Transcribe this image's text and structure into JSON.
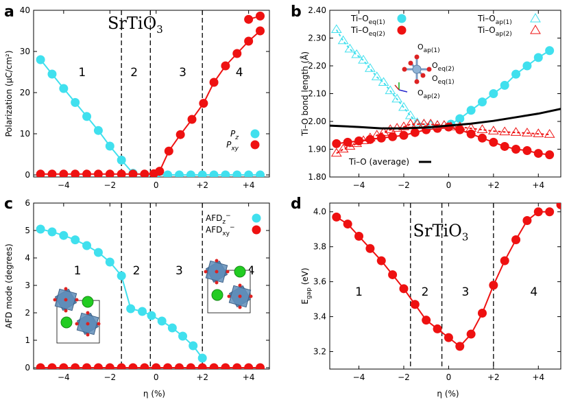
{
  "colors": {
    "cyan": "#40E0EE",
    "red": "#EE1111",
    "black": "#000000",
    "octa": "#5F8DB8"
  },
  "chart_data": [
    {
      "id": "a",
      "panel_label": "a",
      "type": "line",
      "xlabel": "",
      "ylabel": "Polarization (μC/cm²)",
      "xlim": [
        -5.3,
        4.9
      ],
      "ylim": [
        -0.5,
        40
      ],
      "xticks": [
        -4,
        -2,
        0,
        2,
        4
      ],
      "xtick_labels": [
        "−4",
        "−2",
        "0",
        "+2",
        "+4"
      ],
      "yticks": [
        0,
        10,
        20,
        30,
        40
      ],
      "ytick_labels": [
        "0",
        "10",
        "20",
        "30",
        "40"
      ],
      "vlines": [
        -1.5,
        -0.25,
        2.0
      ],
      "regions": [
        {
          "x": -3.2,
          "y": 24,
          "text": "1"
        },
        {
          "x": -0.95,
          "y": 24,
          "text": "2"
        },
        {
          "x": 1.15,
          "y": 24,
          "text": "3"
        },
        {
          "x": 3.6,
          "y": 24,
          "text": "4"
        }
      ],
      "title_text": {
        "x": -0.9,
        "y": 35.5,
        "text": "SrTiO",
        "sub": "3"
      },
      "legend": [
        {
          "name": "P",
          "sub": "z",
          "color": "cyan"
        },
        {
          "name": "P",
          "sub": "xy",
          "color": "red"
        }
      ],
      "series": [
        {
          "name": "Pz",
          "color": "cyan",
          "x": [
            -5.0,
            -4.5,
            -4.0,
            -3.5,
            -3.0,
            -2.5,
            -2.0,
            -1.5,
            -1.0,
            -0.5,
            0,
            0.5,
            1.0,
            1.5,
            2.0,
            2.5,
            3.0,
            3.5,
            4.0,
            4.5
          ],
          "y": [
            28.0,
            24.5,
            21.0,
            17.6,
            14.2,
            10.8,
            7.0,
            3.6,
            0.4,
            0,
            0,
            0,
            0,
            0,
            0,
            0,
            0,
            0,
            0,
            0
          ]
        },
        {
          "name": "Pxy",
          "color": "red",
          "x": [
            -5.0,
            -4.5,
            -4.0,
            -3.5,
            -3.0,
            -2.5,
            -2.0,
            -1.5,
            -1.0,
            -0.5,
            -0.1,
            0.15,
            0.55,
            1.05,
            1.55,
            2.05,
            2.5,
            3.0,
            3.5,
            4.0,
            4.5
          ],
          "y": [
            0.2,
            0.2,
            0.2,
            0.2,
            0.2,
            0.2,
            0.2,
            0.2,
            0.2,
            0.2,
            0.3,
            0.9,
            5.8,
            9.8,
            13.5,
            17.4,
            22.5,
            26.5,
            29.5,
            32.5,
            35.0
          ]
        },
        {
          "name": "Pxy-extra",
          "color": "red",
          "x": [
            4.0,
            4.5
          ],
          "y": [
            37.8,
            38.6
          ]
        }
      ]
    },
    {
      "id": "b",
      "panel_label": "b",
      "type": "line",
      "xlabel": "",
      "ylabel": "Ti–O bond length (Å)",
      "xlim": [
        -5.3,
        5.0
      ],
      "ylim": [
        1.8,
        2.4
      ],
      "xticks": [
        -4,
        -2,
        0,
        2,
        4
      ],
      "xtick_labels": [
        "−4",
        "−2",
        "0",
        "+2",
        "+4"
      ],
      "yticks": [
        1.8,
        1.9,
        2.0,
        2.1,
        2.2,
        2.3,
        2.4
      ],
      "ytick_labels": [
        "1.80",
        "1.90",
        "2.00",
        "2.10",
        "2.20",
        "2.30",
        "2.40"
      ],
      "legend": [
        {
          "name": "Ti–O",
          "sub": "eq(1)",
          "color": "cyan",
          "marker": "circle"
        },
        {
          "name": "Ti–O",
          "sub": "eq(2)",
          "color": "red",
          "marker": "circle"
        },
        {
          "name": "Ti–O",
          "sub": "ap(1)",
          "color": "cyan",
          "marker": "triangle"
        },
        {
          "name": "Ti–O",
          "sub": "ap(2)",
          "color": "red",
          "marker": "triangle"
        },
        {
          "name": "Ti–O (average)",
          "sub": "",
          "color": "black",
          "marker": "line"
        }
      ],
      "inset_labels": [
        {
          "text": "O",
          "sub": "ap(1)"
        },
        {
          "text": "O",
          "sub": "eq(2)"
        },
        {
          "text": "O",
          "sub": "eq(1)"
        },
        {
          "text": "O",
          "sub": "ap(2)"
        }
      ],
      "series": [
        {
          "name": "Ti–O eq(1)",
          "color": "cyan",
          "marker": "circle",
          "x": [
            0.1,
            0.5,
            1.0,
            1.5,
            2.0,
            2.5,
            3.0,
            3.5,
            4.0,
            4.5
          ],
          "y": [
            1.99,
            2.01,
            2.04,
            2.07,
            2.1,
            2.13,
            2.17,
            2.2,
            2.23,
            2.255
          ]
        },
        {
          "name": "Ti–O eq(2)",
          "color": "red",
          "marker": "circle",
          "x": [
            -5.0,
            -4.5,
            -4.0,
            -3.5,
            -3.0,
            -2.5,
            -2.0,
            -1.5,
            -1.0,
            -0.5,
            0,
            0.5,
            1.0,
            1.5,
            2.0,
            2.5,
            3.0,
            3.5,
            4.0,
            4.5
          ],
          "y": [
            1.92,
            1.925,
            1.93,
            1.935,
            1.94,
            1.945,
            1.95,
            1.96,
            1.97,
            1.975,
            1.98,
            1.97,
            1.955,
            1.94,
            1.925,
            1.91,
            1.9,
            1.895,
            1.885,
            1.88
          ]
        },
        {
          "name": "Ti–O ap(1)",
          "color": "cyan",
          "marker": "triangle",
          "x": [
            -5.0,
            -4.7,
            -4.4,
            -4.1,
            -3.8,
            -3.5,
            -3.2,
            -2.9,
            -2.6,
            -2.3,
            -2.0,
            -1.7,
            -1.4,
            -1.1,
            -0.8,
            -0.5,
            -0.2
          ],
          "y": [
            2.33,
            2.29,
            2.26,
            2.24,
            2.22,
            2.19,
            2.16,
            2.14,
            2.11,
            2.08,
            2.05,
            2.02,
            1.995,
            1.99,
            1.985,
            1.985,
            1.985
          ]
        },
        {
          "name": "Ti–O ap(2)",
          "color": "red",
          "marker": "triangle",
          "x": [
            -5.0,
            -4.7,
            -4.4,
            -4.1,
            -3.8,
            -3.5,
            -3.2,
            -2.9,
            -2.6,
            -2.3,
            -2.0,
            -1.7,
            -1.4,
            -1.1,
            -0.8,
            -0.5,
            -0.2,
            0.1,
            0.5,
            1.0,
            1.5,
            2.0,
            2.5,
            3.0,
            3.5,
            4.0,
            4.5
          ],
          "y": [
            1.885,
            1.9,
            1.91,
            1.92,
            1.93,
            1.94,
            1.95,
            1.96,
            1.97,
            1.975,
            1.98,
            1.99,
            1.99,
            1.99,
            1.99,
            1.985,
            1.985,
            1.98,
            1.98,
            1.975,
            1.97,
            1.965,
            1.962,
            1.96,
            1.958,
            1.955,
            1.953
          ]
        },
        {
          "name": "Ti–O (average)",
          "color": "black",
          "marker": "line",
          "x": [
            -5.3,
            -4.0,
            -3.0,
            -2.0,
            -1.0,
            0,
            1.0,
            2.0,
            3.0,
            4.0,
            5.0
          ],
          "y": [
            1.985,
            1.98,
            1.975,
            1.975,
            1.978,
            1.985,
            1.992,
            2.002,
            2.015,
            2.028,
            2.045
          ]
        }
      ]
    },
    {
      "id": "c",
      "panel_label": "c",
      "type": "line",
      "xlabel": "η (%)",
      "ylabel": "AFD mode (degrees)",
      "xlim": [
        -5.3,
        4.9
      ],
      "ylim": [
        -0.05,
        6
      ],
      "xticks": [
        -4,
        -2,
        0,
        2,
        4
      ],
      "xtick_labels": [
        "−4",
        "−2",
        "0",
        "+2",
        "+4"
      ],
      "yticks": [
        0,
        1,
        2,
        3,
        4,
        5,
        6
      ],
      "ytick_labels": [
        "0",
        "1",
        "2",
        "3",
        "4",
        "5",
        "6"
      ],
      "vlines": [
        -1.5,
        -0.25,
        2.0
      ],
      "regions": [
        {
          "x": -3.4,
          "y": 3.4,
          "text": "1"
        },
        {
          "x": -0.85,
          "y": 3.4,
          "text": "2"
        },
        {
          "x": 1.0,
          "y": 3.4,
          "text": "3"
        },
        {
          "x": 4.1,
          "y": 3.4,
          "text": "4"
        }
      ],
      "legend": [
        {
          "name": "AFD",
          "sub": "z",
          "sup": "−",
          "color": "cyan"
        },
        {
          "name": "AFD",
          "sub": "xy",
          "sup": "−",
          "color": "red"
        }
      ],
      "series": [
        {
          "name": "AFDz",
          "color": "cyan",
          "x": [
            -5.0,
            -4.5,
            -4.0,
            -3.5,
            -3.0,
            -2.5,
            -2.0,
            -1.5,
            -1.1,
            -0.6,
            -0.2,
            0.25,
            0.7,
            1.15,
            1.6,
            2.0
          ],
          "y": [
            5.05,
            4.95,
            4.82,
            4.66,
            4.45,
            4.2,
            3.85,
            3.35,
            2.15,
            2.05,
            1.9,
            1.7,
            1.45,
            1.15,
            0.8,
            0.35
          ]
        },
        {
          "name": "AFDxy",
          "color": "red",
          "x": [
            -5.0,
            -4.5,
            -4.0,
            -3.5,
            -3.0,
            -2.5,
            -2.0,
            -1.5,
            -1.0,
            -0.5,
            0,
            0.5,
            1.0,
            1.5,
            2.0,
            2.5,
            3.0,
            3.5,
            4.0,
            4.5
          ],
          "y": [
            0,
            0,
            0,
            0,
            0,
            0,
            0,
            0,
            0,
            0,
            0,
            0,
            0,
            0,
            0,
            0,
            0,
            0,
            0,
            0
          ]
        }
      ]
    },
    {
      "id": "d",
      "panel_label": "d",
      "type": "line",
      "xlabel": "η (%)",
      "ylabel": "E_gap (eV)",
      "ylabel_main": "E",
      "ylabel_sub": "gap",
      "ylabel_unit": " (eV)",
      "xlim": [
        -5.3,
        5.0
      ],
      "ylim": [
        3.1,
        4.05
      ],
      "xticks": [
        -4,
        -2,
        0,
        2,
        4
      ],
      "xtick_labels": [
        "−4",
        "−2",
        "0",
        "+2",
        "+4"
      ],
      "yticks": [
        3.2,
        3.4,
        3.6,
        3.8,
        4.0
      ],
      "ytick_labels": [
        "3.2",
        "3.4",
        "3.6",
        "3.8",
        "4.0"
      ],
      "vlines": [
        -1.7,
        -0.3,
        2.0
      ],
      "regions": [
        {
          "x": -4.0,
          "y": 3.52,
          "text": "1"
        },
        {
          "x": -1.05,
          "y": 3.52,
          "text": "2"
        },
        {
          "x": 0.75,
          "y": 3.52,
          "text": "3"
        },
        {
          "x": 3.8,
          "y": 3.52,
          "text": "4"
        }
      ],
      "title_text": {
        "x": -0.35,
        "y": 3.86,
        "text": "SrTiO",
        "sub": "3"
      },
      "series": [
        {
          "name": "Egap",
          "color": "red",
          "x": [
            -5.0,
            -4.5,
            -4.0,
            -3.5,
            -3.0,
            -2.5,
            -2.0,
            -1.5,
            -1.0,
            -0.5,
            0,
            0.5,
            1.0,
            1.5,
            2.0,
            2.5,
            3.0,
            3.5,
            4.0,
            4.5
          ],
          "y": [
            3.97,
            3.93,
            3.86,
            3.79,
            3.72,
            3.64,
            3.56,
            3.47,
            3.38,
            3.33,
            3.28,
            3.23,
            3.3,
            3.42,
            3.58,
            3.72,
            3.84,
            3.95,
            4.0,
            4.0
          ]
        },
        {
          "name": "Egap-line-ends",
          "color": "red",
          "x": [
            5.0
          ],
          "y": [
            4.04
          ]
        }
      ]
    }
  ]
}
